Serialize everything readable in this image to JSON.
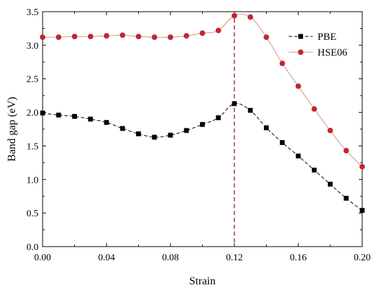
{
  "chart_data": {
    "type": "line",
    "xlabel": "Strain",
    "ylabel": "Band gap (eV)",
    "xlim": [
      0.0,
      0.2
    ],
    "ylim": [
      0.0,
      3.5
    ],
    "x_ticks": [
      0.0,
      0.04,
      0.08,
      0.12,
      0.16,
      0.2
    ],
    "x_tick_labels": [
      "0.00",
      "0.04",
      "0.08",
      "0.12",
      "0.16",
      "0.20"
    ],
    "y_ticks": [
      0.0,
      0.5,
      1.0,
      1.5,
      2.0,
      2.5,
      3.0,
      3.5
    ],
    "y_tick_labels": [
      "0.0",
      "0.5",
      "1.0",
      "1.5",
      "2.0",
      "2.5",
      "3.0",
      "3.5"
    ],
    "grid": false,
    "legend_position": "top-right",
    "vertical_reference_line": {
      "x": 0.12,
      "color": "#8b1a1a",
      "style": "dashed"
    },
    "x": [
      0.0,
      0.01,
      0.02,
      0.03,
      0.04,
      0.05,
      0.06,
      0.07,
      0.08,
      0.09,
      0.1,
      0.11,
      0.12,
      0.13,
      0.14,
      0.15,
      0.16,
      0.17,
      0.18,
      0.19,
      0.2
    ],
    "series": [
      {
        "name": "PBE",
        "marker": "square",
        "color": "#000000",
        "marker_color": "#000000",
        "line_style": "dashed",
        "values": [
          1.99,
          1.96,
          1.94,
          1.9,
          1.85,
          1.76,
          1.68,
          1.63,
          1.66,
          1.73,
          1.82,
          1.92,
          2.13,
          2.03,
          1.77,
          1.55,
          1.35,
          1.14,
          0.93,
          0.72,
          0.54
        ]
      },
      {
        "name": "HSE06",
        "marker": "circle",
        "color": "#d98c8c",
        "marker_color": "#c0282d",
        "line_style": "solid",
        "values": [
          3.12,
          3.12,
          3.13,
          3.13,
          3.14,
          3.15,
          3.13,
          3.12,
          3.12,
          3.14,
          3.18,
          3.22,
          3.44,
          3.42,
          3.12,
          2.73,
          2.39,
          2.05,
          1.73,
          1.43,
          1.19
        ]
      }
    ]
  }
}
